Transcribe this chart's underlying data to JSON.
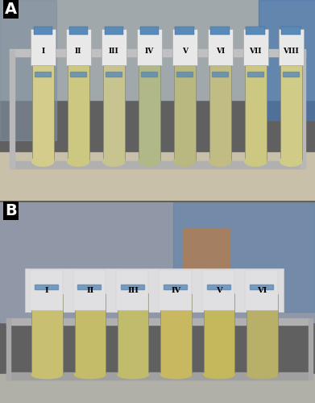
{
  "fig_width": 3.91,
  "fig_height": 5.0,
  "dpi": 100,
  "panel_a_label": "A",
  "panel_b_label": "B",
  "label_fontsize": 14,
  "label_color": "white",
  "label_bg": "black",
  "panel_a_tubes": [
    "I",
    "II",
    "III",
    "IV",
    "V",
    "VI",
    "VII",
    "VIII"
  ],
  "panel_b_tubes": [
    "I",
    "II",
    "III",
    "IV",
    "V",
    "VI"
  ],
  "panel_a_bg": "#b8baba",
  "panel_b_bg": "#9daab0",
  "rack_color_a": "#d0d0d0",
  "rack_color_b": "#c8c8c8",
  "tube_colors_a": [
    "#d4cc8a",
    "#ccc882",
    "#c8c490",
    "#b0b888",
    "#b8b880",
    "#c0bc84",
    "#ccc882",
    "#d0cc88"
  ],
  "tube_colors_b": [
    "#c8c070",
    "#c4bc68",
    "#c0bc6c",
    "#c8b860",
    "#c4b85c",
    "#b8b068"
  ],
  "cap_color": "#5a8ab8",
  "label_holder_color": "#e8e8e8",
  "tube_outline": "#888870",
  "divider_color": "#787878",
  "border_color": "#555555"
}
